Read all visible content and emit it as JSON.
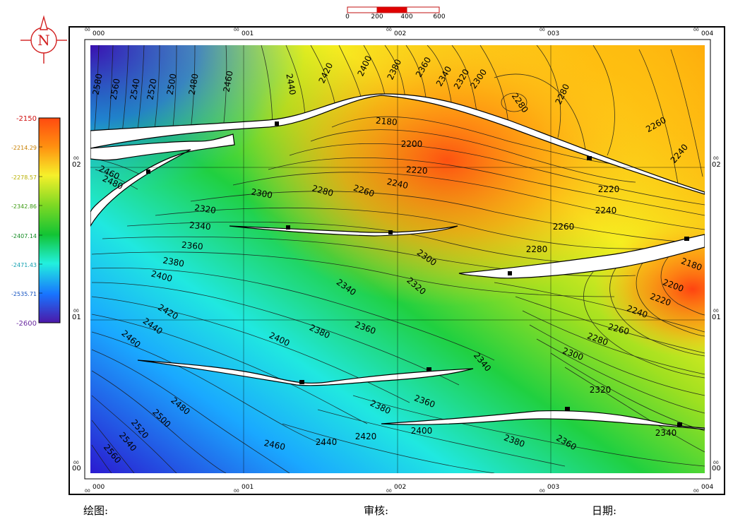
{
  "scale_bar": {
    "ticks": [
      "0",
      "200",
      "400",
      "600"
    ],
    "segment_colors": [
      "#ffffff",
      "#e00000",
      "#ffffff"
    ]
  },
  "north_arrow": {
    "letter": "N",
    "icon": "north-arrow-icon",
    "color": "#d22020"
  },
  "legend": {
    "labels": [
      "-2150",
      "-2214.29",
      "-2278.57",
      "-2342.86",
      "-2407.14",
      "-2471.43",
      "-2535.71",
      "-2600"
    ],
    "colors": [
      "#ff5a18",
      "#ffae0c",
      "#f5f22a",
      "#86dc2a",
      "#16c82e",
      "#26eeda",
      "#1774ff",
      "#4a1aa6"
    ],
    "label_colors": [
      "#e01010",
      "#d88a00",
      "#c8c000",
      "#3a9a10",
      "#108a20",
      "#10aab0",
      "#1050c0",
      "#6a2aa0"
    ]
  },
  "grid": {
    "x_labels": [
      "000",
      "001",
      "002",
      "003",
      "004"
    ],
    "y_labels": [
      "02",
      "01",
      "00"
    ],
    "sup_label": "00"
  },
  "contour_labels": [
    "2580",
    "2560",
    "2540",
    "2520",
    "2500",
    "2480",
    "2460",
    "2440",
    "2420",
    "2400",
    "2380",
    "2360",
    "2340",
    "2320",
    "2300",
    "2280",
    "2280",
    "2260",
    "2240",
    "2180",
    "2200",
    "2220",
    "2240",
    "2260",
    "2280",
    "2300",
    "2320",
    "2340",
    "2460",
    "2480",
    "2360",
    "2380",
    "2400",
    "2420",
    "2440",
    "2460",
    "2300",
    "2320",
    "2340",
    "2360",
    "2380",
    "2400",
    "2220",
    "2240",
    "2260",
    "2280",
    "2180",
    "2200",
    "2220",
    "2240",
    "2260",
    "2280",
    "2300",
    "2440",
    "2460",
    "2480",
    "2500",
    "2520",
    "2540",
    "2560",
    "2380",
    "2360",
    "2340",
    "2320",
    "2360",
    "2380",
    "2400",
    "2420",
    "2440",
    "2460",
    "2340",
    "2360",
    "2380"
  ],
  "footer": {
    "draw": "绘图:",
    "review": "审核:",
    "date": "日期:"
  }
}
